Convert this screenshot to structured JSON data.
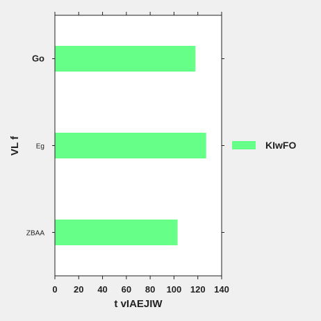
{
  "chart_data": {
    "type": "bar",
    "orientation": "horizontal",
    "categories": [
      "Go",
      "Eg",
      "ZBAA"
    ],
    "series": [
      {
        "name": "KIwFO",
        "values": [
          118,
          127,
          103
        ],
        "color": "#66ff88"
      }
    ],
    "xlabel": "t vIAEJIW",
    "ylabel": "VL f",
    "xlim": [
      0,
      140
    ],
    "xticks": [
      0,
      20,
      40,
      60,
      80,
      100,
      120,
      140
    ],
    "grid": false,
    "legend_position": "right"
  }
}
